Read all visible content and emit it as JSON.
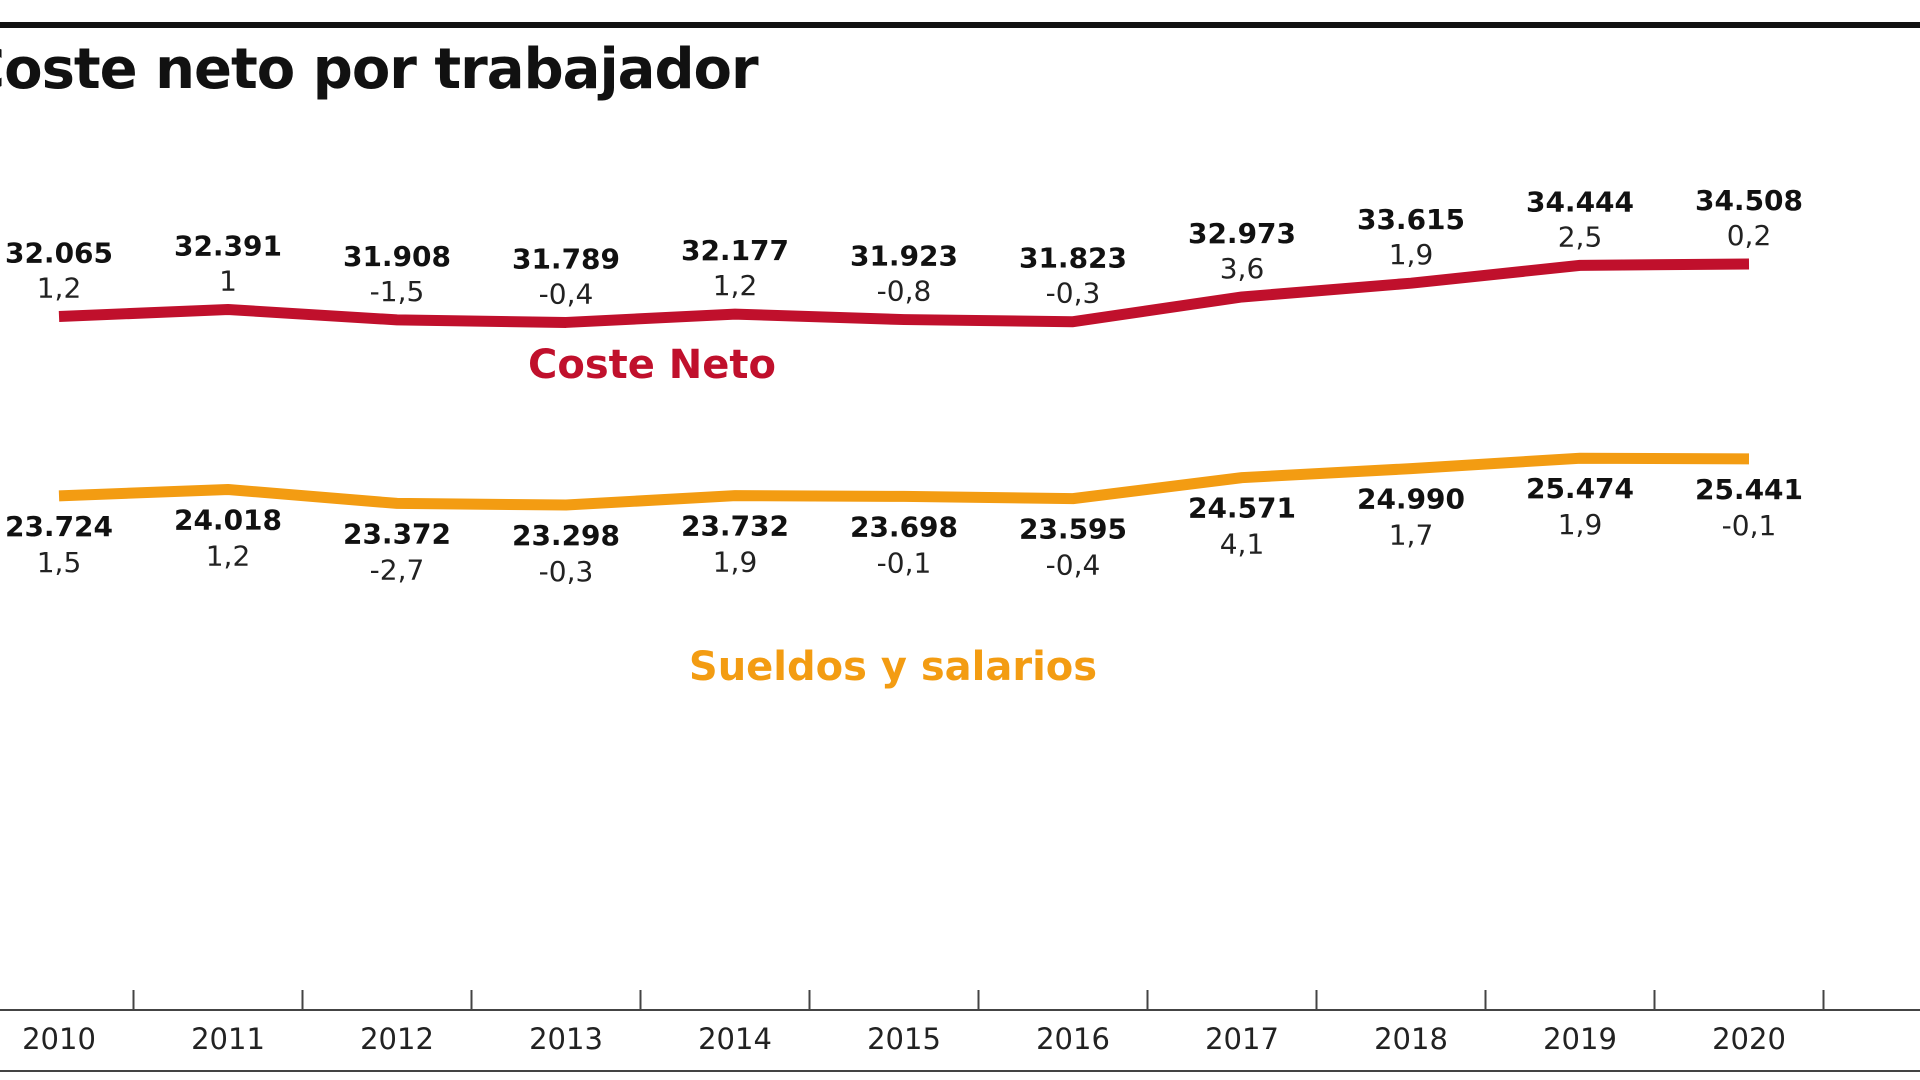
{
  "chart_data": {
    "type": "line",
    "title": "Coste neto por trabajador",
    "categories": [
      "2010",
      "2011",
      "2012",
      "2013",
      "2014",
      "2015",
      "2016",
      "2017",
      "2018",
      "2019",
      "2020"
    ],
    "series": [
      {
        "name": "Coste Neto",
        "color": "#c0102c",
        "values": [
          32065,
          32391,
          31908,
          31789,
          32177,
          31923,
          31823,
          32973,
          33615,
          34444,
          34508
        ],
        "value_labels": [
          "32.065",
          "32.391",
          "31.908",
          "31.789",
          "32.177",
          "31.923",
          "31.823",
          "32.973",
          "33.615",
          "34.444",
          "34.508"
        ],
        "changes": [
          1.2,
          1,
          -1.5,
          -0.4,
          1.2,
          -0.8,
          -0.3,
          3.6,
          1.9,
          2.5,
          0.2
        ],
        "change_labels": [
          "1,2",
          "1",
          "-1,5",
          "-0,4",
          "1,2",
          "-0,8",
          "-0,3",
          "3,6",
          "1,9",
          "2,5",
          "0,2"
        ]
      },
      {
        "name": "Sueldos y salarios",
        "color": "#f39c12",
        "values": [
          23724,
          24018,
          23372,
          23298,
          23732,
          23698,
          23595,
          24571,
          24990,
          25474,
          25441
        ],
        "value_labels": [
          "23.724",
          "24.018",
          "23.372",
          "23.298",
          "23.732",
          "23.698",
          "23.595",
          "24.571",
          "24.990",
          "25.474",
          "25.441"
        ],
        "changes": [
          1.5,
          1.2,
          -2.7,
          -0.3,
          1.9,
          -0.1,
          -0.4,
          4.1,
          1.7,
          1.9,
          -0.1
        ],
        "change_labels": [
          "1,5",
          "1,2",
          "-2,7",
          "-0,3",
          "1,9",
          "-0,1",
          "-0,4",
          "4,1",
          "1,7",
          "1,9",
          "-0,1"
        ]
      }
    ]
  }
}
